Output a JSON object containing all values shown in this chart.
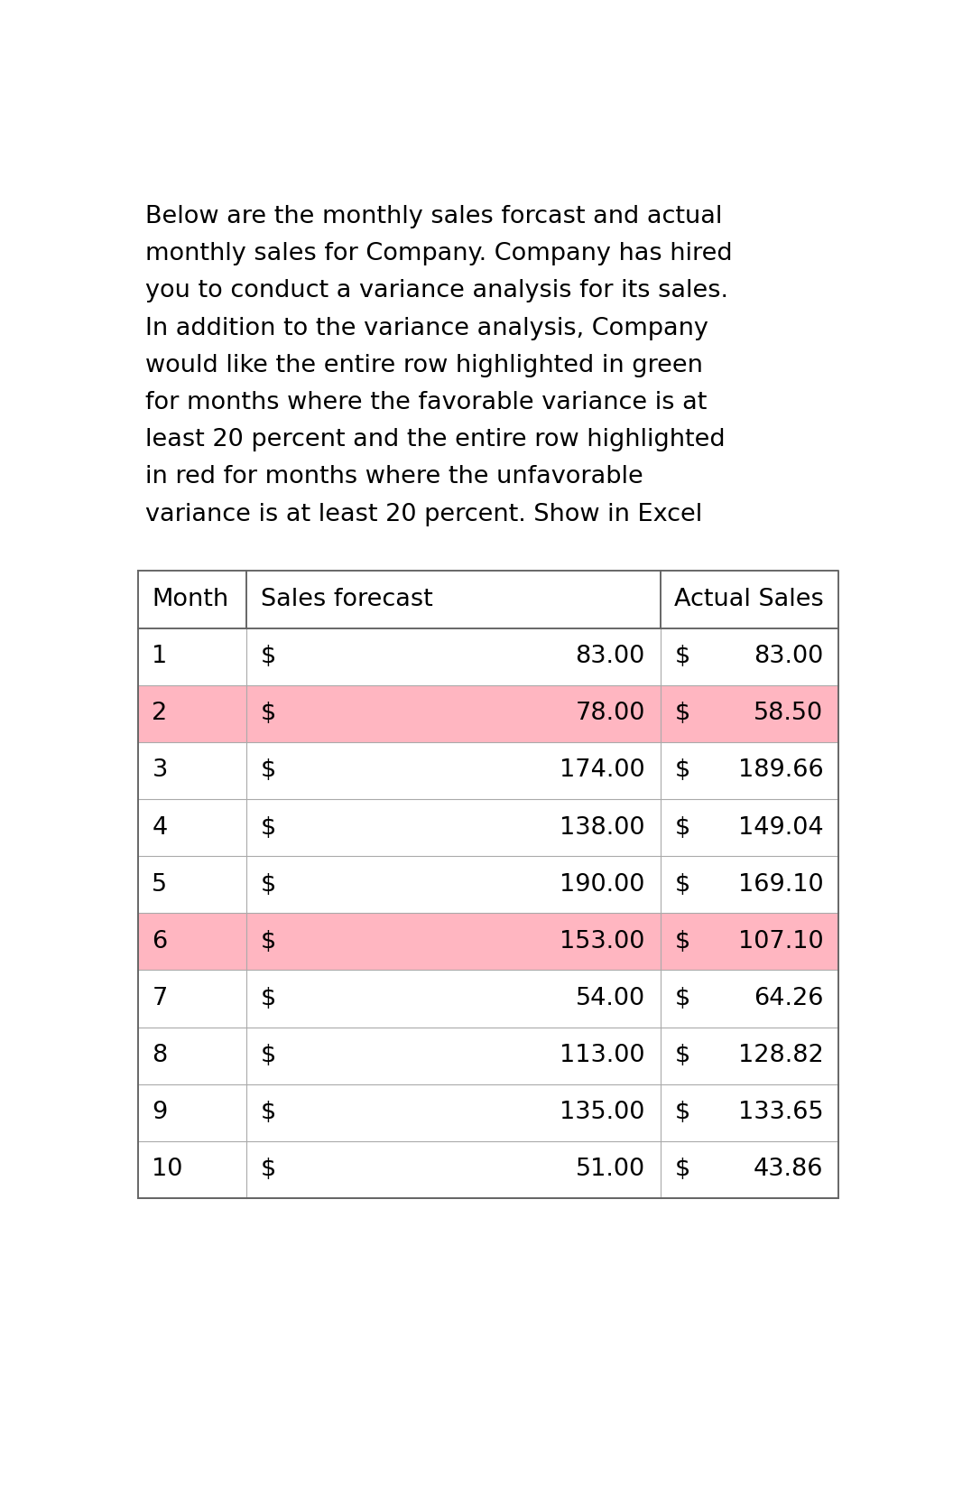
{
  "description_text": "Below are the monthly sales forcast and actual\nmonthly sales for Company. Company has hired\nyou to conduct a variance analysis for its sales.\nIn addition to the variance analysis, Company\nwould like the entire row highlighted in green\nfor months where the favorable variance is at\nleast 20 percent and the entire row highlighted\nin red for months where the unfavorable\nvariance is at least 20 percent. Show in Excel",
  "header": [
    "Month",
    "Sales forecast",
    "Actual Sales"
  ],
  "months": [
    1,
    2,
    3,
    4,
    5,
    6,
    7,
    8,
    9,
    10
  ],
  "forecast": [
    83.0,
    78.0,
    174.0,
    138.0,
    190.0,
    153.0,
    54.0,
    113.0,
    135.0,
    51.0
  ],
  "actual": [
    83.0,
    58.5,
    189.66,
    149.04,
    169.1,
    107.1,
    64.26,
    128.82,
    133.65,
    43.86
  ],
  "bg_color": "#ffffff",
  "text_color": "#000000",
  "font_size_description": 19.5,
  "font_size_table": 19.5,
  "description_font": "DejaVu Sans",
  "table_font": "DejaVu Sans",
  "green_color": "#90EE90",
  "red_color": "#FFB6C1",
  "border_color_strong": "#666666",
  "border_color_light": "#aaaaaa"
}
